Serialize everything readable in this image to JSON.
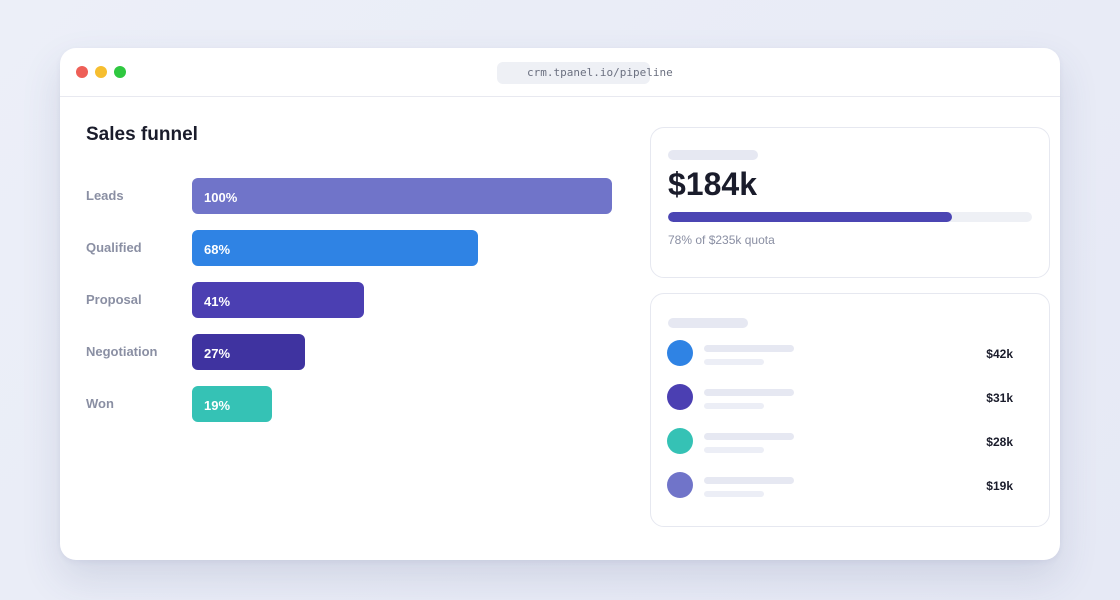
{
  "browser": {
    "url": "crm.tpanel.io/pipeline"
  },
  "funnel": {
    "title": "Sales funnel",
    "stages": [
      {
        "label": "Leads",
        "pct_text": "100%",
        "value": 100,
        "color": "#7074c9"
      },
      {
        "label": "Qualified",
        "pct_text": "68%",
        "value": 68,
        "color": "#2f83e4"
      },
      {
        "label": "Proposal",
        "pct_text": "41%",
        "value": 41,
        "color": "#4b3fb2"
      },
      {
        "label": "Negotiation",
        "pct_text": "27%",
        "value": 27,
        "color": "#3f33a0"
      },
      {
        "label": "Won",
        "pct_text": "19%",
        "value": 19,
        "color": "#35c2b5"
      }
    ]
  },
  "revenue": {
    "amount": "$184k",
    "quota_progress": 0.78,
    "quota_text": "78% of $235k quota",
    "accent": "#4b45b3"
  },
  "deals": [
    {
      "amount": "$42k",
      "color": "#2f83e4"
    },
    {
      "amount": "$31k",
      "color": "#4b3fb2"
    },
    {
      "amount": "$28k",
      "color": "#35c2b5"
    },
    {
      "amount": "$19k",
      "color": "#7074c9"
    }
  ]
}
